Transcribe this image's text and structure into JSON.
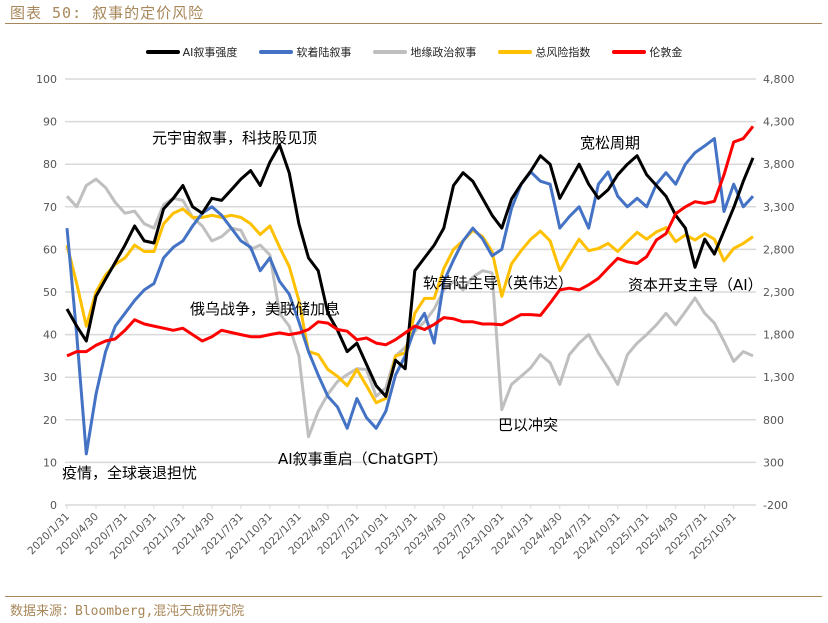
{
  "title": "图表 50:  叙事的定价风险",
  "source": "数据来源：Bloomberg,混沌天成研究院",
  "chart_data": {
    "type": "line",
    "title": "",
    "x": [
      "2020/1/31",
      "2020/2/29",
      "2020/3/31",
      "2020/4/30",
      "2020/5/31",
      "2020/6/30",
      "2020/7/31",
      "2020/8/31",
      "2020/9/30",
      "2020/10/31",
      "2020/11/30",
      "2020/12/31",
      "2021/1/31",
      "2021/2/28",
      "2021/3/31",
      "2021/4/30",
      "2021/5/31",
      "2021/6/30",
      "2021/7/31",
      "2021/8/31",
      "2021/9/30",
      "2021/10/31",
      "2021/11/30",
      "2021/12/31",
      "2022/1/31",
      "2022/2/28",
      "2022/3/31",
      "2022/4/30",
      "2022/5/31",
      "2022/6/30",
      "2022/7/31",
      "2022/8/31",
      "2022/9/30",
      "2022/10/31",
      "2022/11/30",
      "2022/12/31",
      "2023/1/31",
      "2023/2/28",
      "2023/3/31",
      "2023/4/30",
      "2023/5/31",
      "2023/6/30",
      "2023/7/31",
      "2023/8/31",
      "2023/9/30",
      "2023/10/31",
      "2023/11/30",
      "2023/12/31",
      "2024/1/31",
      "2024/2/29",
      "2024/3/31",
      "2024/4/30",
      "2024/5/31",
      "2024/6/30",
      "2024/7/31",
      "2024/8/31",
      "2024/9/30",
      "2024/10/31",
      "2024/11/30",
      "2024/12/31",
      "2025/1/31",
      "2025/2/28",
      "2025/3/31",
      "2025/4/30",
      "2025/5/31",
      "2025/6/30",
      "2025/7/31",
      "2025/8/31",
      "2025/9/30",
      "2025/10/31",
      "2025/11/30",
      "2025/12/31"
    ],
    "x_tick_labels": [
      "2020/1/31",
      "2020/4/30",
      "2020/7/31",
      "2020/10/31",
      "2021/1/31",
      "2021/4/30",
      "2021/7/31",
      "2021/10/31",
      "2022/1/31",
      "2022/4/30",
      "2022/7/31",
      "2022/10/31",
      "2023/1/31",
      "2023/4/30",
      "2023/7/31",
      "2023/10/31",
      "2024/1/31",
      "2024/4/30",
      "2024/7/31",
      "2024/10/31",
      "2025/1/31",
      "2025/4/30",
      "2025/7/31",
      "2025/10/31"
    ],
    "y_left": {
      "range": [
        0,
        100
      ],
      "ticks": [
        "0",
        "10",
        "20",
        "30",
        "40",
        "50",
        "60",
        "70",
        "80",
        "90",
        "100"
      ]
    },
    "y_right": {
      "range": [
        -200,
        4800
      ],
      "ticks": [
        "-200",
        "300",
        "800",
        "1,300",
        "1,800",
        "2,300",
        "2,800",
        "3,300",
        "3,800",
        "4,300",
        "4,800"
      ]
    },
    "grid": true,
    "legend_position": "top",
    "series": [
      {
        "name": "AI叙事强度",
        "axis": "left",
        "color": "#000000",
        "values": [
          46,
          42,
          38.5,
          49,
          53,
          57,
          61,
          65.5,
          62,
          61.5,
          69.5,
          72,
          75,
          70,
          68.5,
          72,
          71.5,
          74,
          76.5,
          78.5,
          75,
          80.5,
          84.5,
          78,
          66,
          58,
          55,
          45,
          41,
          36,
          38,
          33,
          28,
          25.5,
          34,
          32,
          55,
          58,
          61,
          65,
          75,
          78,
          76,
          72,
          68,
          65,
          71.8,
          75.3,
          78.4,
          82,
          80,
          72,
          76,
          80,
          75.3,
          72,
          74,
          77.5,
          80,
          82,
          77.5,
          75,
          72.5,
          68,
          65,
          55.8,
          62.4,
          58.9,
          64.3,
          69.8,
          76,
          81.5
        ]
      },
      {
        "name": "软着陆叙事",
        "axis": "left",
        "color": "#4472c4",
        "values": [
          65,
          40,
          12,
          26,
          36,
          42,
          45,
          48,
          50.5,
          52,
          58,
          60.5,
          62,
          65.5,
          68.5,
          70,
          68,
          65,
          62,
          60.5,
          55,
          58,
          52.5,
          49.5,
          43,
          36,
          30.5,
          25.5,
          23,
          18,
          25,
          20.5,
          18,
          22,
          30.5,
          35,
          41.5,
          45,
          38,
          52.5,
          57.5,
          62,
          65,
          62.5,
          58.5,
          60,
          69.6,
          75.3,
          78.2,
          76,
          75.3,
          65,
          67.7,
          70,
          65,
          75.3,
          78.2,
          72.5,
          70,
          72,
          70,
          75.3,
          78,
          75.3,
          80,
          82.7,
          84.3,
          86,
          68.9,
          75.3,
          70,
          72.5
        ]
      },
      {
        "name": "地缘政治叙事",
        "axis": "left",
        "color": "#bfbfbf",
        "values": [
          72.5,
          70,
          75,
          76.5,
          74.5,
          71,
          68.5,
          69,
          66,
          65,
          70.5,
          72,
          71.5,
          67.5,
          65.5,
          62,
          63,
          65,
          64.5,
          60,
          61,
          58.7,
          45,
          42,
          35,
          16,
          22,
          26,
          29,
          30.6,
          32,
          31.8,
          25.5,
          27.5,
          35,
          37,
          40.8,
          43,
          46,
          50.5,
          52.5,
          50.5,
          53.5,
          55,
          54.5,
          22.4,
          28.3,
          30.2,
          32.2,
          35.3,
          33.4,
          28.3,
          35.3,
          38,
          40,
          35.7,
          32.2,
          28.3,
          35.3,
          38,
          40,
          42.3,
          45,
          42.3,
          45.4,
          48.6,
          45,
          42.7,
          38.4,
          33.7,
          36,
          35
        ]
      },
      {
        "name": "总风险指数",
        "axis": "left",
        "color": "#ffc000",
        "values": [
          61,
          52,
          42,
          50,
          54,
          56.5,
          58,
          61,
          59.5,
          59.5,
          66,
          68.5,
          69.5,
          67.5,
          67.5,
          68,
          67.5,
          68,
          67.5,
          66,
          63.5,
          65.5,
          60.5,
          56,
          48,
          36,
          35.3,
          31.8,
          30.2,
          28,
          31.8,
          28,
          24,
          25,
          35,
          35.7,
          45,
          48.5,
          48.5,
          55.5,
          60,
          62,
          64.5,
          63,
          59.5,
          49,
          56.6,
          59.7,
          62.4,
          64.3,
          62,
          55,
          58.7,
          62.4,
          59.7,
          60.2,
          61.4,
          59.5,
          61.8,
          64,
          62.4,
          64.1,
          65.1,
          61.8,
          63.4,
          62.2,
          63.7,
          62.4,
          57.3,
          60.2,
          61.4,
          63
        ]
      },
      {
        "name": "伦敦金",
        "axis": "right",
        "color": "#ff0000",
        "values": [
          1550,
          1600,
          1600,
          1675,
          1725,
          1750,
          1850,
          1975,
          1925,
          1900,
          1875,
          1850,
          1875,
          1800,
          1725,
          1775,
          1850,
          1825,
          1800,
          1775,
          1775,
          1800,
          1820,
          1800,
          1820,
          1860,
          1950,
          1935,
          1860,
          1840,
          1740,
          1760,
          1700,
          1680,
          1740,
          1820,
          1900,
          1860,
          1920,
          2000,
          1985,
          1950,
          1950,
          1925,
          1925,
          1915,
          1975,
          2035,
          2035,
          2025,
          2170,
          2325,
          2345,
          2325,
          2385,
          2460,
          2580,
          2695,
          2655,
          2635,
          2715,
          2910,
          2985,
          3220,
          3300,
          3360,
          3340,
          3365,
          3675,
          4060,
          4100,
          4245
        ]
      }
    ],
    "annotations": [
      {
        "text": "元宇宙叙事，科技股见顶"
      },
      {
        "text": "俄乌战争，美联储加息"
      },
      {
        "text": "疫情，全球衰退担忧"
      },
      {
        "text": "AI叙事重启（ChatGPT）"
      },
      {
        "text": "软着陆主导（英伟达）"
      },
      {
        "text": "巴以冲突"
      },
      {
        "text": "宽松周期"
      },
      {
        "text": "资本开支主导（AI）"
      }
    ]
  }
}
